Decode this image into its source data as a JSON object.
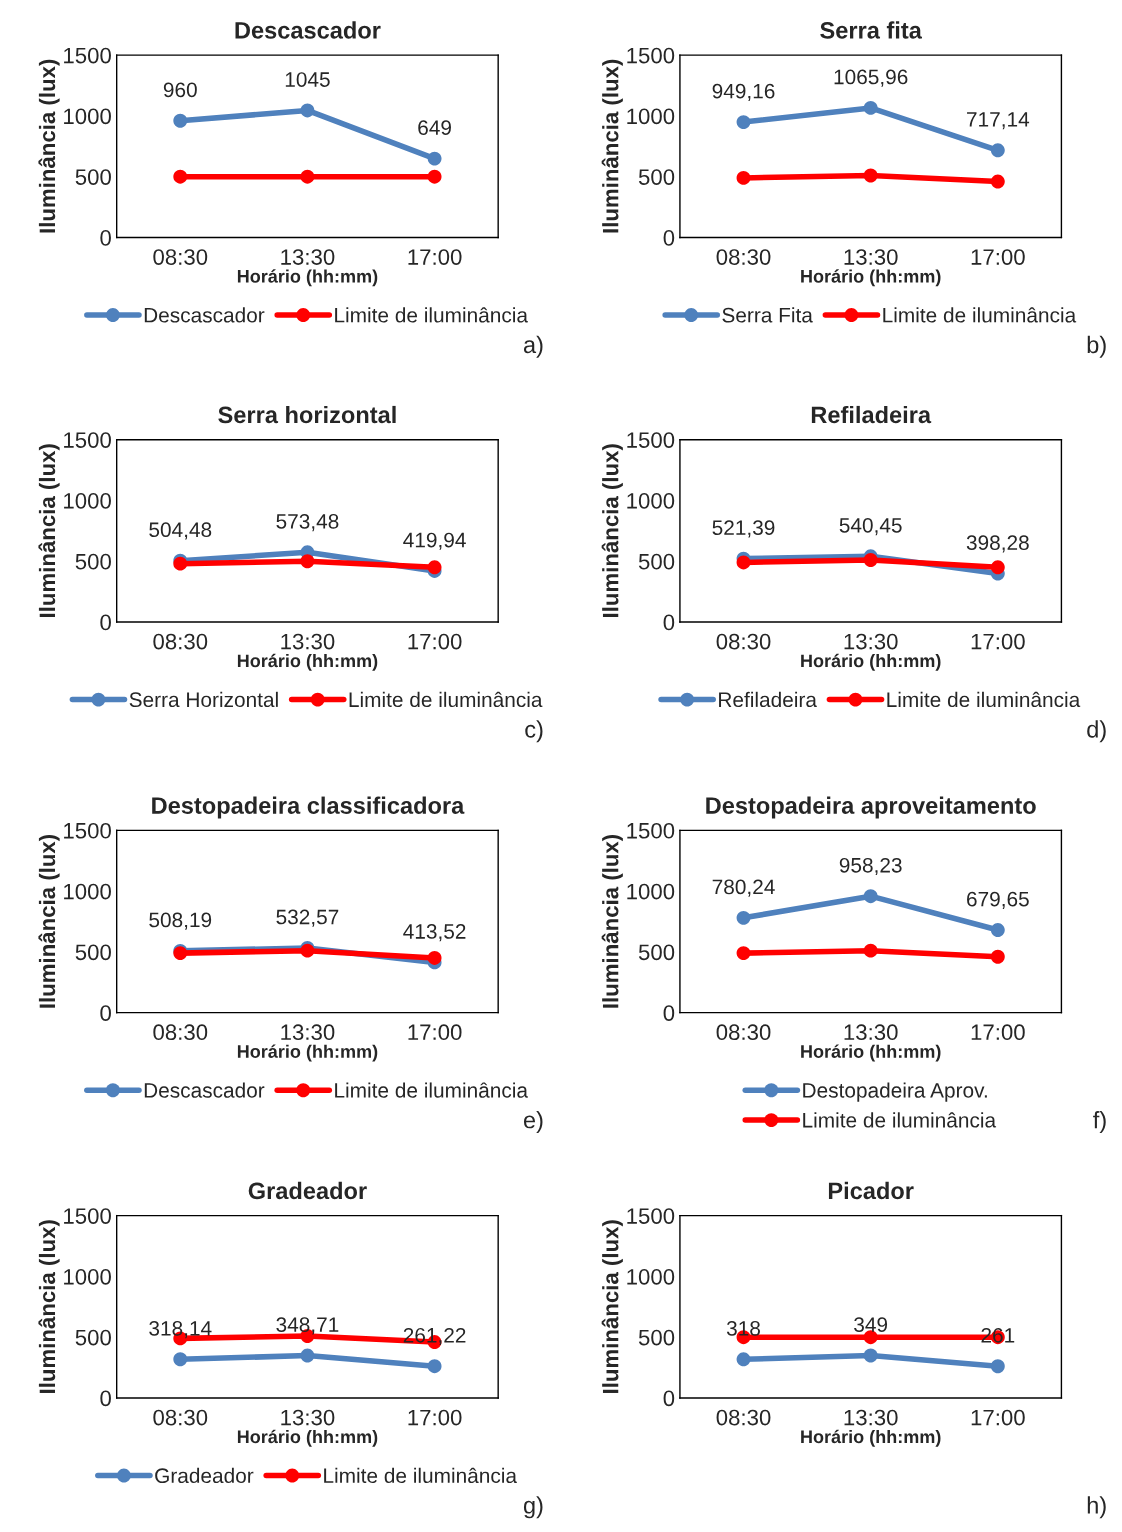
{
  "chart_data": [
    {
      "type": "line",
      "title": "Descascador",
      "xlabel": "Horário (hh:mm)",
      "ylabel": "Iluminância (lux)",
      "categories": [
        "08:30",
        "13:30",
        "17:00"
      ],
      "ylim": [
        0,
        1500
      ],
      "yticks": [
        0,
        500,
        1000,
        1500
      ],
      "legend": "bottom",
      "marker": "circle",
      "annotations": [
        "a)"
      ],
      "series": [
        {
          "name": "Descascador",
          "color": "#4f81bd",
          "values": [
            960,
            1045,
            649
          ],
          "value_labels": [
            "960",
            "1045",
            "649"
          ]
        },
        {
          "name": "Limite de iluminância",
          "color": "#ff0000",
          "values": [
            500,
            500,
            500
          ]
        }
      ]
    },
    {
      "type": "line",
      "title": "Serra fita",
      "xlabel": "Horário (hh:mm)",
      "ylabel": "Iluminância (lux)",
      "categories": [
        "08:30",
        "13:30",
        "17:00"
      ],
      "ylim": [
        0,
        1500
      ],
      "yticks": [
        0,
        500,
        1000,
        1500
      ],
      "legend": "bottom",
      "marker": "circle",
      "annotations": [
        "b)"
      ],
      "series": [
        {
          "name": "Serra Fita",
          "color": "#4f81bd",
          "values": [
            949.16,
            1065.96,
            717.14
          ],
          "value_labels": [
            "949,16",
            "1065,96",
            "717,14"
          ]
        },
        {
          "name": "Limite de iluminância",
          "color": "#ff0000",
          "values": [
            490,
            510,
            460
          ]
        }
      ]
    },
    {
      "type": "line",
      "title": "Serra horizontal",
      "xlabel": "Horário (hh:mm)",
      "ylabel": "Iluminância (lux)",
      "categories": [
        "08:30",
        "13:30",
        "17:00"
      ],
      "ylim": [
        0,
        1500
      ],
      "yticks": [
        0,
        500,
        1000,
        1500
      ],
      "legend": "bottom",
      "marker": "circle",
      "annotations": [
        "c)"
      ],
      "series": [
        {
          "name": "Serra Horizontal",
          "color": "#4f81bd",
          "values": [
            504.48,
            573.48,
            419.94
          ],
          "value_labels": [
            "504,48",
            "573,48",
            "419,94"
          ]
        },
        {
          "name": "Limite de iluminância",
          "color": "#ff0000",
          "values": [
            480,
            500,
            450
          ]
        }
      ]
    },
    {
      "type": "line",
      "title": "Refiladeira",
      "xlabel": "Horário (hh:mm)",
      "ylabel": "Iluminância (lux)",
      "categories": [
        "08:30",
        "13:30",
        "17:00"
      ],
      "ylim": [
        0,
        1500
      ],
      "yticks": [
        0,
        500,
        1000,
        1500
      ],
      "legend": "bottom",
      "marker": "circle",
      "annotations": [
        "d)"
      ],
      "series": [
        {
          "name": "Refiladeira",
          "color": "#4f81bd",
          "values": [
            521.39,
            540.45,
            398.28
          ],
          "value_labels": [
            "521,39",
            "540,45",
            "398,28"
          ]
        },
        {
          "name": "Limite de iluminância",
          "color": "#ff0000",
          "values": [
            490,
            510,
            450
          ]
        }
      ]
    },
    {
      "type": "line",
      "title": "Destopadeira classificadora",
      "xlabel": "Horário (hh:mm)",
      "ylabel": "Iluminância (lux)",
      "categories": [
        "08:30",
        "13:30",
        "17:00"
      ],
      "ylim": [
        0,
        1500
      ],
      "yticks": [
        0,
        500,
        1000,
        1500
      ],
      "legend": "bottom",
      "marker": "circle",
      "annotations": [
        "e)"
      ],
      "series": [
        {
          "name": "Descascador",
          "color": "#4f81bd",
          "values": [
            508.19,
            532.57,
            413.52
          ],
          "value_labels": [
            "508,19",
            "532,57",
            "413,52"
          ]
        },
        {
          "name": "Limite de iluminância",
          "color": "#ff0000",
          "values": [
            490,
            510,
            450
          ]
        }
      ]
    },
    {
      "type": "line",
      "title": "Destopadeira aproveitamento",
      "xlabel": "Horário (hh:mm)",
      "ylabel": "Iluminância (lux)",
      "categories": [
        "08:30",
        "13:30",
        "17:00"
      ],
      "ylim": [
        0,
        1500
      ],
      "yticks": [
        0,
        500,
        1000,
        1500
      ],
      "legend": "bottom",
      "marker": "circle",
      "annotations": [
        "f)"
      ],
      "series": [
        {
          "name": "Destopadeira Aprov.",
          "color": "#4f81bd",
          "values": [
            780.24,
            958.23,
            679.65
          ],
          "value_labels": [
            "780,24",
            "958,23",
            "679,65"
          ]
        },
        {
          "name": "Limite de iluminância",
          "color": "#ff0000",
          "values": [
            490,
            510,
            460
          ]
        }
      ]
    },
    {
      "type": "line",
      "title": "Gradeador",
      "xlabel": "Horário (hh:mm)",
      "ylabel": "Iluminância (lux)",
      "categories": [
        "08:30",
        "13:30",
        "17:00"
      ],
      "ylim": [
        0,
        1500
      ],
      "yticks": [
        0,
        500,
        1000,
        1500
      ],
      "legend": "bottom",
      "marker": "circle",
      "annotations": [
        "g)"
      ],
      "series": [
        {
          "name": "Gradeador",
          "color": "#4f81bd",
          "values": [
            318.14,
            348.71,
            261.22
          ],
          "value_labels": [
            "318,14",
            "348,71",
            "261,22"
          ]
        },
        {
          "name": "Limite de iluminância",
          "color": "#ff0000",
          "values": [
            490,
            510,
            460
          ]
        }
      ]
    },
    {
      "type": "line",
      "title": "Picador",
      "xlabel": "Horário (hh:mm)",
      "ylabel": "Iluminância (lux)",
      "categories": [
        "08:30",
        "13:30",
        "17:00"
      ],
      "ylim": [
        0,
        1500
      ],
      "yticks": [
        0,
        500,
        1000,
        1500
      ],
      "legend": false,
      "marker": "circle",
      "annotations": [
        "h)"
      ],
      "series": [
        {
          "color": "#4f81bd",
          "values": [
            318,
            349,
            261
          ],
          "value_labels": [
            "318",
            "349",
            "261"
          ]
        },
        {
          "color": "#ff0000",
          "values": [
            500,
            500,
            500
          ]
        }
      ]
    }
  ]
}
